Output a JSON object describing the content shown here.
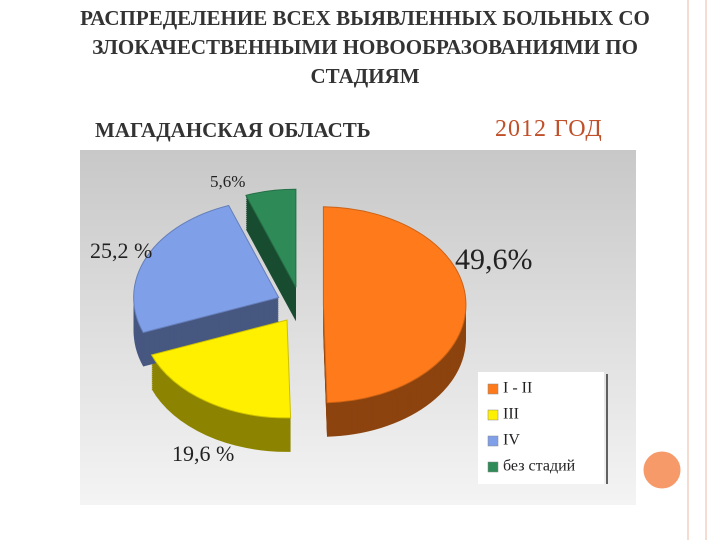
{
  "chart_data": {
    "type": "pie",
    "title": "РАСПРЕДЕЛЕНИЕ ВСЕХ ВЫЯВЛЕННЫХ БОЛЬНЫХ СО ЗЛОКАЧЕСТВЕННЫМИ НОВООБРАЗОВАНИЯМИ ПО СТАДИЯМ",
    "subtitle": "МАГАДАНСКАЯ ОБЛАСТЬ",
    "annotation": "2012 ГОД",
    "categories": [
      "I - II",
      "III",
      "IV",
      "без стадий"
    ],
    "values": [
      49.6,
      19.6,
      25.2,
      5.6
    ],
    "value_labels": [
      "49,6%",
      "19,6 %",
      "25,2 %",
      "5,6%"
    ],
    "colors": [
      "#ff7a1a",
      "#fff000",
      "#7f9fe8",
      "#2e8b57"
    ],
    "legend": "bottom-right"
  }
}
